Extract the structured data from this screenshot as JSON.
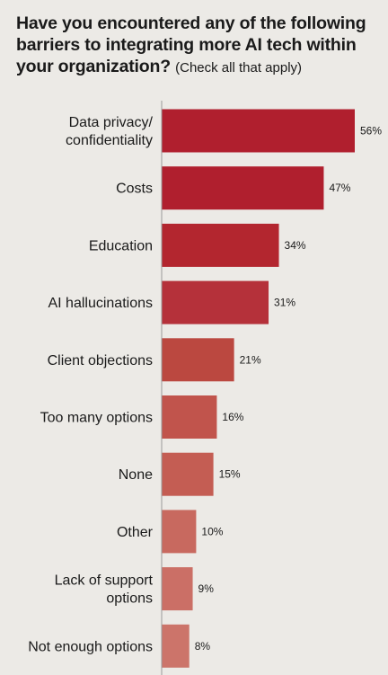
{
  "title": {
    "question": "Have you encountered any of the following barriers to integrating more AI tech within your organization?",
    "note": "(Check all that apply)"
  },
  "chart_data": {
    "type": "bar",
    "orientation": "horizontal",
    "title": "Have you encountered any of the following barriers to integrating more AI tech within your organization? (Check all that apply)",
    "categories": [
      "Data privacy/ confidentiality",
      "Costs",
      "Education",
      "AI hallucinations",
      "Client objections",
      "Too many options",
      "None",
      "Other",
      "Lack of support options",
      "Not enough options"
    ],
    "category_lines": [
      [
        "Data privacy/",
        "confidentiality"
      ],
      [
        "Costs"
      ],
      [
        "Education"
      ],
      [
        "AI hallucinations"
      ],
      [
        "Client objections"
      ],
      [
        "Too many options"
      ],
      [
        "None"
      ],
      [
        "Other"
      ],
      [
        "Lack of support",
        "options"
      ],
      [
        "Not enough options"
      ]
    ],
    "values": [
      56,
      47,
      34,
      31,
      21,
      16,
      15,
      10,
      9,
      8
    ],
    "value_labels": [
      "56%",
      "47%",
      "34%",
      "31%",
      "21%",
      "16%",
      "15%",
      "10%",
      "9%",
      "8%"
    ],
    "unit": "%",
    "colors": [
      "#b01f2e",
      "#b01f2e",
      "#b3262f",
      "#b5313a",
      "#bb4840",
      "#c1544c",
      "#c45d53",
      "#c8695f",
      "#cb6f66",
      "#cc746a"
    ],
    "axis_color": "#9a9a9a",
    "xlim": [
      0,
      56
    ],
    "grid": false,
    "legend": "none"
  }
}
